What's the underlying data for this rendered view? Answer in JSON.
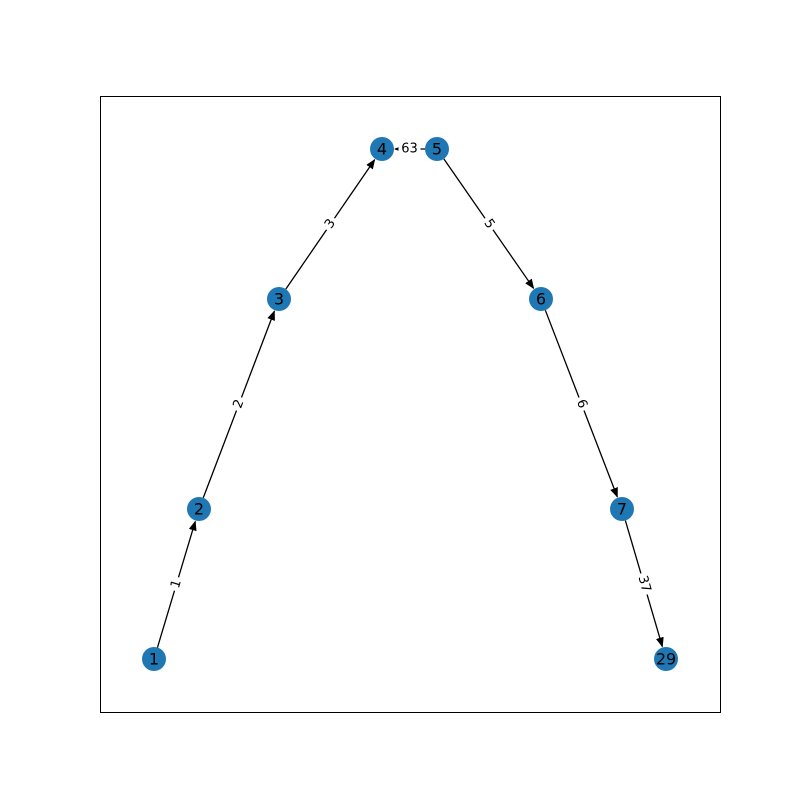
{
  "graph": {
    "directed": true,
    "node_color": "#1f77b4",
    "edge_color": "#000000",
    "label_background": "#ffffff",
    "frame_color": "#000000",
    "nodes": [
      {
        "id": "1",
        "label": "1"
      },
      {
        "id": "2",
        "label": "2"
      },
      {
        "id": "3",
        "label": "3"
      },
      {
        "id": "4",
        "label": "4"
      },
      {
        "id": "5",
        "label": "5"
      },
      {
        "id": "6",
        "label": "6"
      },
      {
        "id": "7",
        "label": "7"
      },
      {
        "id": "29",
        "label": "29"
      }
    ],
    "edges": [
      {
        "source": "1",
        "target": "2",
        "label": "1"
      },
      {
        "source": "2",
        "target": "3",
        "label": "2"
      },
      {
        "source": "3",
        "target": "4",
        "label": "3"
      },
      {
        "source": "5",
        "target": "4",
        "label": "63"
      },
      {
        "source": "5",
        "target": "6",
        "label": "5"
      },
      {
        "source": "6",
        "target": "7",
        "label": "6"
      },
      {
        "source": "7",
        "target": "29",
        "label": "37"
      }
    ]
  }
}
